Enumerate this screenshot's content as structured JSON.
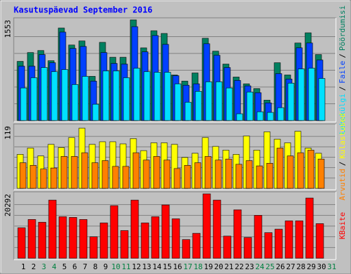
{
  "chart_data": [
    {
      "type": "bar",
      "title": "Kasutuspäevad September 2016",
      "ylim": [
        0,
        1553
      ],
      "yticks": [
        1553
      ],
      "grid": true,
      "legend_separator": "/",
      "series": [
        {
          "name": "Pöördumisi",
          "color": "#008060",
          "values": [
            913,
            1049,
            1080,
            923,
            1427,
            1165,
            1228,
            682,
            1206,
            976,
            976,
            1553,
            1121,
            1385,
            1343,
            703,
            608,
            734,
            1269,
            1070,
            871,
            671,
            566,
            493,
            315,
            892,
            703,
            1196,
            1353,
            1018,
            null
          ]
        },
        {
          "name": "Faile",
          "color": "#0040ff",
          "values": [
            839,
            839,
            1018,
            892,
            1364,
            1112,
            1143,
            608,
            1049,
            881,
            871,
            1448,
            1060,
            1311,
            1175,
            692,
            545,
            566,
            1185,
            1007,
            818,
            619,
            535,
            430,
            273,
            724,
            640,
            1122,
            1196,
            934,
            null
          ]
        },
        {
          "name": "Lehekülgi",
          "color": "#00e0ff",
          "values": [
            504,
            661,
            818,
            755,
            787,
            556,
            682,
            252,
            766,
            766,
            661,
            808,
            755,
            745,
            745,
            566,
            283,
            451,
            598,
            598,
            504,
            105,
            441,
            136,
            126,
            199,
            577,
            797,
            808,
            650,
            null
          ]
        }
      ]
    },
    {
      "type": "bar",
      "ylim": [
        0,
        119
      ],
      "yticks": [
        119
      ],
      "grid": true,
      "legend_separator": "/",
      "series": [
        {
          "name": "Külastused",
          "color": "#ffff00",
          "values": [
            65,
            77,
            62,
            84,
            78,
            97,
            115,
            84,
            89,
            89,
            85,
            95,
            72,
            87,
            87,
            84,
            59,
            67,
            97,
            80,
            73,
            65,
            100,
            73,
            108,
            94,
            87,
            109,
            77,
            67,
            null
          ]
        },
        {
          "name": "Arvutid",
          "color": "#ff8000",
          "values": [
            49,
            44,
            37,
            39,
            61,
            61,
            68,
            49,
            53,
            42,
            42,
            68,
            54,
            61,
            54,
            38,
            44,
            49,
            61,
            54,
            56,
            46,
            53,
            43,
            48,
            77,
            62,
            68,
            73,
            56,
            null
          ]
        }
      ]
    },
    {
      "type": "bar",
      "ylim": [
        0,
        20292
      ],
      "yticks": [
        20292
      ],
      "grid": true,
      "categories": [
        "1",
        "2",
        "3",
        "4",
        "5",
        "6",
        "7",
        "8",
        "9",
        "10",
        "11",
        "12",
        "13",
        "14",
        "15",
        "16",
        "17",
        "18",
        "19",
        "20",
        "21",
        "22",
        "23",
        "24",
        "25",
        "26",
        "27",
        "28",
        "29",
        "30",
        "31"
      ],
      "category_colors": [
        "#000000",
        "#000000",
        "#008040",
        "#008040",
        "#000000",
        "#000000",
        "#000000",
        "#000000",
        "#000000",
        "#008040",
        "#008040",
        "#000000",
        "#000000",
        "#000000",
        "#000000",
        "#000000",
        "#008040",
        "#008040",
        "#000000",
        "#000000",
        "#000000",
        "#000000",
        "#000000",
        "#008040",
        "#008040",
        "#000000",
        "#000000",
        "#000000",
        "#000000",
        "#000000",
        "#008040"
      ],
      "series": [
        {
          "name": "KBaite",
          "color": "#ff0000",
          "values": [
            9601,
            12219,
            11346,
            18329,
            13092,
            12874,
            12219,
            6764,
            11128,
            16583,
            8728,
            18329,
            11128,
            13092,
            16801,
            12437,
            5891,
            7855,
            20292,
            18329,
            6983,
            15274,
            6546,
            13528,
            8073,
            9165,
            11783,
            11783,
            18983,
            10910,
            null
          ]
        }
      ]
    }
  ]
}
